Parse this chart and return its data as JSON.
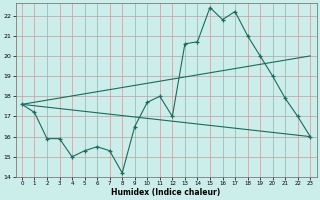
{
  "xlabel": "Humidex (Indice chaleur)",
  "xlim": [
    -0.5,
    23.5
  ],
  "ylim": [
    14,
    22.6
  ],
  "yticks": [
    14,
    15,
    16,
    17,
    18,
    19,
    20,
    21,
    22
  ],
  "xticks": [
    0,
    1,
    2,
    3,
    4,
    5,
    6,
    7,
    8,
    9,
    10,
    11,
    12,
    13,
    14,
    15,
    16,
    17,
    18,
    19,
    20,
    21,
    22,
    23
  ],
  "bg_color": "#cceeea",
  "grid_color": "#c0a0a0",
  "line_color": "#1a6b5e",
  "series1_x": [
    0,
    1,
    2,
    3,
    4,
    5,
    6,
    7,
    8,
    9,
    10,
    11,
    12,
    13,
    14,
    15,
    16,
    17,
    18,
    19,
    20,
    21,
    22,
    23
  ],
  "series1_y": [
    17.6,
    17.2,
    15.9,
    15.9,
    15.0,
    15.3,
    15.5,
    15.3,
    14.2,
    16.5,
    17.7,
    18.0,
    17.0,
    20.6,
    20.7,
    22.4,
    21.8,
    22.2,
    21.0,
    20.0,
    19.0,
    17.9,
    17.0,
    16.0
  ],
  "series2_x": [
    0,
    23
  ],
  "series2_y": [
    17.6,
    20.0
  ],
  "series3_x": [
    0,
    23
  ],
  "series3_y": [
    17.6,
    16.0
  ]
}
